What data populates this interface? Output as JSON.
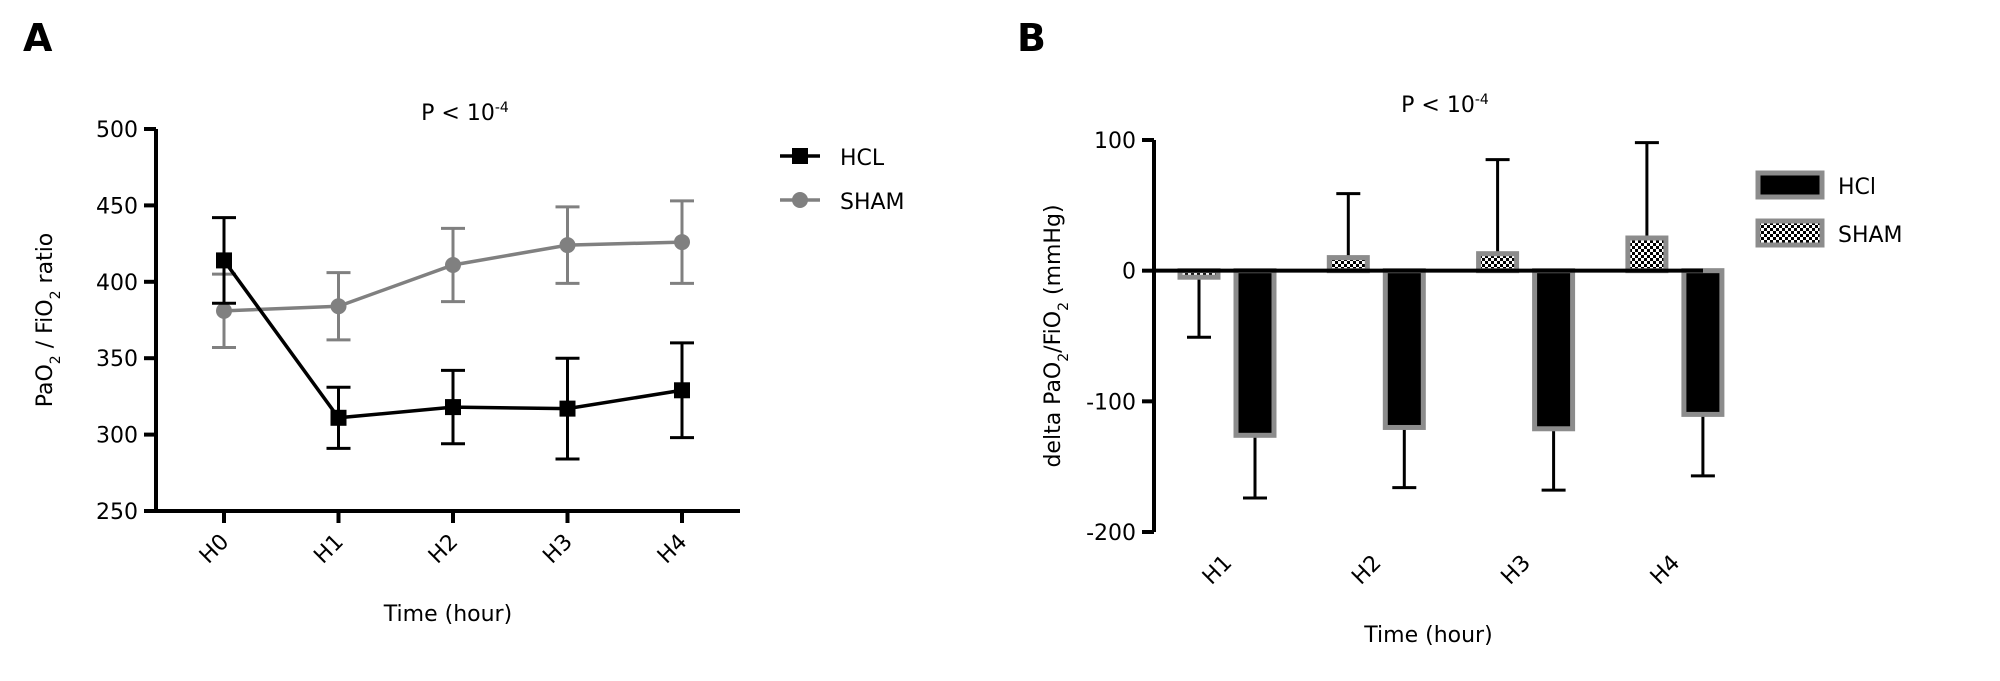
{
  "chart_data": [
    {
      "type": "line",
      "panel": "A",
      "annotation": [
        {
          "text": "P < 10"
        },
        {
          "sup": "-4"
        }
      ],
      "xlabel": "Time (hour)",
      "ylabel": [
        {
          "text": "PaO"
        },
        {
          "sub": "2"
        },
        {
          "text": " / FiO"
        },
        {
          "sub": "2"
        },
        {
          "text": " ratio"
        }
      ],
      "categories": [
        "H0",
        "H1",
        "H2",
        "H3",
        "H4"
      ],
      "series": [
        {
          "name": "HCL",
          "color": "#000000",
          "marker": "square",
          "values": [
            414,
            311,
            318,
            317,
            329
          ],
          "errors": [
            28,
            20,
            24,
            33,
            31
          ]
        },
        {
          "name": "SHAM",
          "color": "#808080",
          "marker": "circle",
          "values": [
            381,
            384,
            411,
            424,
            426
          ],
          "errors": [
            24,
            22,
            24,
            25,
            27
          ]
        }
      ],
      "ylim": [
        250,
        500
      ],
      "yticks": [
        250,
        300,
        350,
        400,
        450,
        500
      ]
    },
    {
      "type": "bar",
      "panel": "B",
      "annotation": [
        {
          "text": "P < 10"
        },
        {
          "sup": "-4"
        }
      ],
      "xlabel": "Time (hour)",
      "ylabel": [
        {
          "text": "delta PaO"
        },
        {
          "sub": "2"
        },
        {
          "text": "/FiO"
        },
        {
          "sub": "2"
        },
        {
          "text": " (mmHg)"
        }
      ],
      "categories": [
        "H1",
        "H2",
        "H3",
        "H4"
      ],
      "series": [
        {
          "name": "HCl",
          "color": "#000000",
          "values": [
            -126,
            -120,
            -121,
            -110
          ],
          "errors": [
            48,
            46,
            47,
            47
          ]
        },
        {
          "name": "SHAM",
          "color": "checker",
          "values": [
            -5,
            10,
            13,
            25
          ],
          "errors": [
            46,
            49,
            72,
            73
          ]
        }
      ],
      "bar_order": [
        1,
        0
      ],
      "ylim": [
        -200,
        100
      ],
      "yticks": [
        -200,
        -100,
        0,
        100
      ]
    }
  ]
}
